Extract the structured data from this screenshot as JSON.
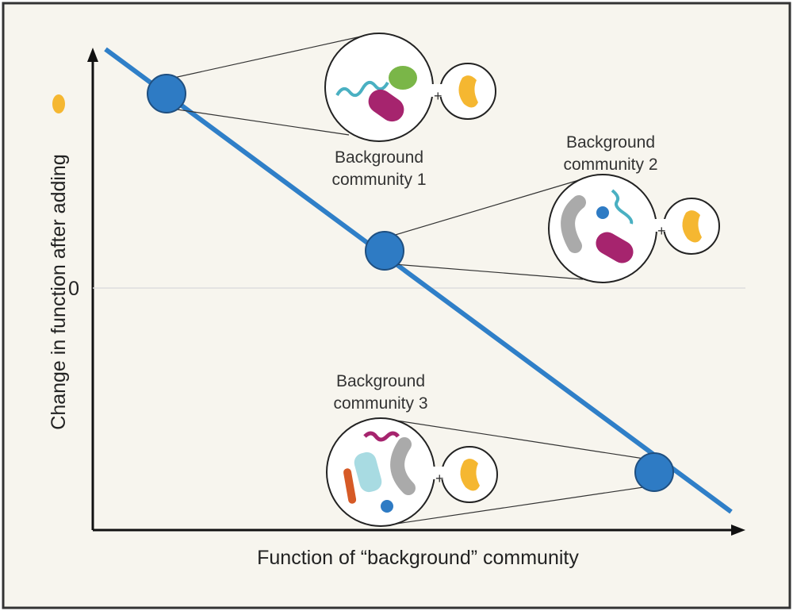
{
  "axes": {
    "x_label": "Function of “background” community",
    "y_label": "Change in function after adding",
    "zero_label": "0"
  },
  "communities": [
    {
      "label": [
        "Background",
        "community 1"
      ]
    },
    {
      "label": [
        "Background",
        "community 2"
      ]
    },
    {
      "label": [
        "Background",
        "community 3"
      ]
    }
  ]
}
